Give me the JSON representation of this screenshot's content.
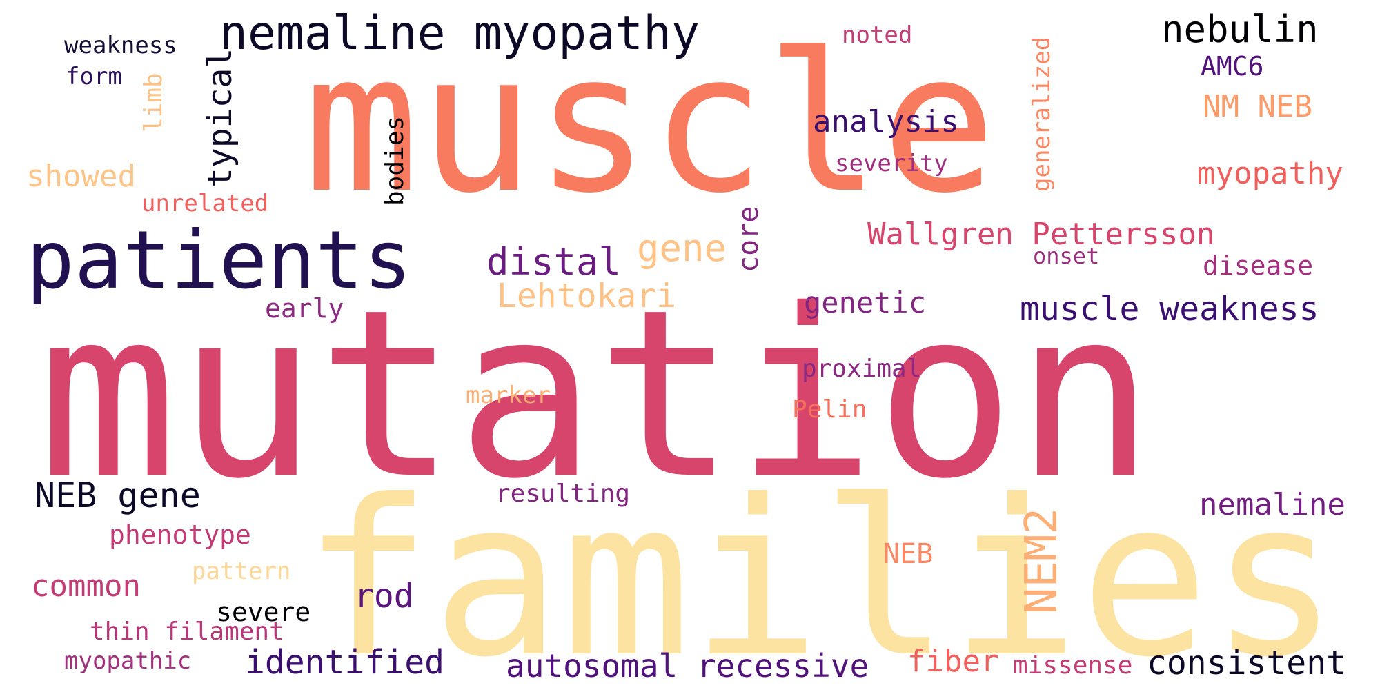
{
  "words": [
    {
      "id": "muscle",
      "text": "muscle",
      "color": "#f97b5f"
    },
    {
      "id": "mutation",
      "text": "mutation",
      "color": "#d8456c"
    },
    {
      "id": "families",
      "text": "families",
      "color": "#fde3a1"
    },
    {
      "id": "patients",
      "text": "patients",
      "color": "#221150"
    },
    {
      "id": "nemaline-myopathy",
      "text": "nemaline myopathy",
      "color": "#0c0927"
    },
    {
      "id": "nebulin",
      "text": "nebulin",
      "color": "#000004"
    },
    {
      "id": "amc6",
      "text": "AMC6",
      "color": "#51127c"
    },
    {
      "id": "nm-neb",
      "text": "NM NEB",
      "color": "#fb9b6a"
    },
    {
      "id": "myopathy",
      "text": "myopathy",
      "color": "#f1605d"
    },
    {
      "id": "noted",
      "text": "noted",
      "color": "#c43c75"
    },
    {
      "id": "weakness",
      "text": "weakness",
      "color": "#120d31"
    },
    {
      "id": "form",
      "text": "form",
      "color": "#2c115f"
    },
    {
      "id": "limb",
      "text": "limb",
      "color": "#fec287"
    },
    {
      "id": "typical",
      "text": "typical",
      "color": "#0d0a28"
    },
    {
      "id": "bodies",
      "text": "bodies",
      "color": "#000004"
    },
    {
      "id": "showed",
      "text": "showed",
      "color": "#fec488"
    },
    {
      "id": "unrelated",
      "text": "unrelated",
      "color": "#f1605d"
    },
    {
      "id": "generalized",
      "text": "generalized",
      "color": "#fa8864"
    },
    {
      "id": "analysis",
      "text": "analysis",
      "color": "#3b0f70"
    },
    {
      "id": "severity",
      "text": "severity",
      "color": "#9e2f7f"
    },
    {
      "id": "core",
      "text": "core",
      "color": "#822681"
    },
    {
      "id": "wallgren-pettersson",
      "text": "Wallgren Pettersson",
      "color": "#d8456c"
    },
    {
      "id": "onset",
      "text": "onset",
      "color": "#9b2f7f"
    },
    {
      "id": "disease",
      "text": "disease",
      "color": "#a3307e"
    },
    {
      "id": "distal",
      "text": "distal",
      "color": "#6a1c81"
    },
    {
      "id": "gene",
      "text": "gene",
      "color": "#fec287"
    },
    {
      "id": "lehtokari",
      "text": "Lehtokari",
      "color": "#fec287"
    },
    {
      "id": "genetic",
      "text": "genetic",
      "color": "#822681"
    },
    {
      "id": "muscle-weakness",
      "text": "muscle weakness",
      "color": "#3b0f70"
    },
    {
      "id": "early",
      "text": "early",
      "color": "#8c2981"
    },
    {
      "id": "proximal",
      "text": "proximal",
      "color": "#8c2981"
    },
    {
      "id": "marker",
      "text": "marker",
      "color": "#fcae74"
    },
    {
      "id": "pelin",
      "text": "Pelin",
      "color": "#f7705c"
    },
    {
      "id": "neb-gene",
      "text": "NEB gene",
      "color": "#0c0927"
    },
    {
      "id": "resulting",
      "text": "resulting",
      "color": "#822681"
    },
    {
      "id": "nemaline",
      "text": "nemaline",
      "color": "#721f81"
    },
    {
      "id": "nem2",
      "text": "NEM2",
      "color": "#fcae74"
    },
    {
      "id": "phenotype",
      "text": "phenotype",
      "color": "#c33b75"
    },
    {
      "id": "pattern",
      "text": "pattern",
      "color": "#fed799"
    },
    {
      "id": "neb",
      "text": "NEB",
      "color": "#fa8864"
    },
    {
      "id": "common",
      "text": "common",
      "color": "#c43c75"
    },
    {
      "id": "rod",
      "text": "rod",
      "color": "#5c167f"
    },
    {
      "id": "severe",
      "text": "severe",
      "color": "#000004"
    },
    {
      "id": "thin-filament",
      "text": "thin filament",
      "color": "#b83779"
    },
    {
      "id": "myopathic",
      "text": "myopathic",
      "color": "#a3307e"
    },
    {
      "id": "identified",
      "text": "identified",
      "color": "#3b0f70"
    },
    {
      "id": "autosomal-recessive",
      "text": "autosomal recessive",
      "color": "#51127c"
    },
    {
      "id": "fiber",
      "text": "fiber",
      "color": "#f1605d"
    },
    {
      "id": "missense",
      "text": "missense",
      "color": "#c43c75"
    },
    {
      "id": "consistent",
      "text": "consistent",
      "color": "#0c0927"
    }
  ]
}
